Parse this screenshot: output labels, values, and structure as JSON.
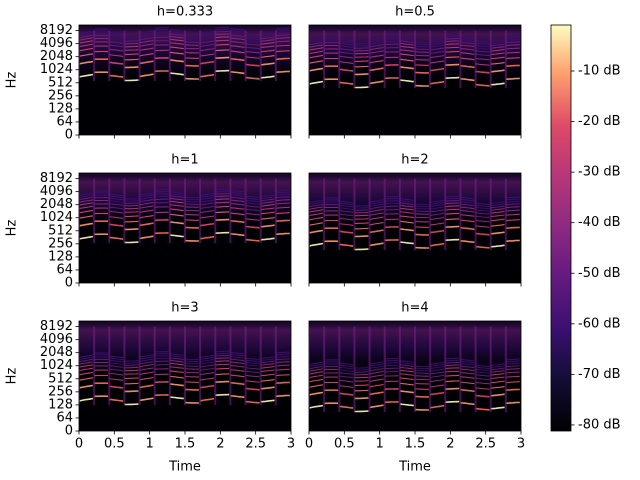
{
  "chart_data": [
    {
      "type": "spectrogram",
      "title": "h=0.333",
      "ylabel": "Hz",
      "yscale": "symlog",
      "linthresh": 64,
      "ylim": [
        0,
        11025
      ],
      "yticks": [
        0,
        64,
        128,
        256,
        512,
        1024,
        2048,
        4096,
        8192
      ],
      "xlim": [
        0,
        3
      ]
    },
    {
      "type": "spectrogram",
      "title": "h=0.5",
      "yscale": "symlog",
      "linthresh": 64,
      "ylim": [
        0,
        11025
      ],
      "xlim": [
        0,
        3
      ]
    },
    {
      "type": "spectrogram",
      "title": "h=1",
      "ylabel": "Hz",
      "yscale": "symlog",
      "linthresh": 64,
      "ylim": [
        0,
        11025
      ],
      "yticks": [
        0,
        64,
        128,
        256,
        512,
        1024,
        2048,
        4096,
        8192
      ],
      "xlim": [
        0,
        3
      ]
    },
    {
      "type": "spectrogram",
      "title": "h=2",
      "yscale": "symlog",
      "linthresh": 64,
      "ylim": [
        0,
        11025
      ],
      "xlim": [
        0,
        3
      ]
    },
    {
      "type": "spectrogram",
      "title": "h=3",
      "ylabel": "Hz",
      "xlabel": "Time",
      "yscale": "symlog",
      "linthresh": 64,
      "ylim": [
        0,
        11025
      ],
      "yticks": [
        0,
        64,
        128,
        256,
        512,
        1024,
        2048,
        4096,
        8192
      ],
      "xlim": [
        0,
        3
      ],
      "xticks": [
        0,
        0.5,
        1,
        1.5,
        2,
        2.5,
        3
      ]
    },
    {
      "type": "spectrogram",
      "title": "h=4",
      "xlabel": "Time",
      "yscale": "symlog",
      "linthresh": 64,
      "ylim": [
        0,
        11025
      ],
      "xlim": [
        0,
        3
      ],
      "xticks": [
        0,
        0.5,
        1,
        1.5,
        2,
        2.5,
        3
      ]
    }
  ],
  "colorbar": {
    "type": "colorbar",
    "colormap": "magma",
    "ylim": [
      -81.2,
      -0.9
    ],
    "yticks": [
      {
        "value": -10,
        "label": "-10 dB"
      },
      {
        "value": -20,
        "label": "-20 dB"
      },
      {
        "value": -30,
        "label": "-30 dB"
      },
      {
        "value": -40,
        "label": "-40 dB"
      },
      {
        "value": -50,
        "label": "-50 dB"
      },
      {
        "value": -60,
        "label": "-60 dB"
      },
      {
        "value": -70,
        "label": "-70 dB"
      },
      {
        "value": -80,
        "label": "-80 dB"
      }
    ]
  }
}
